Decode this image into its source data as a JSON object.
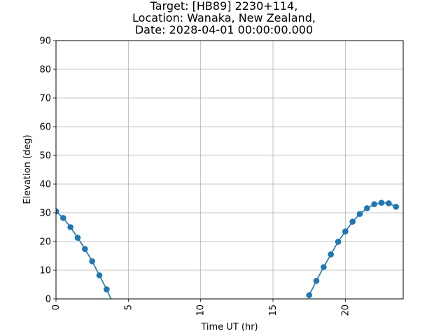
{
  "chart_data": {
    "type": "line",
    "title_lines": [
      "Target: [HB89] 2230+114,",
      "Location: Wanaka, New Zealand,",
      "Date: 2028-04-01 00:00:00.000"
    ],
    "xlabel": "Time UT (hr)",
    "ylabel": "Elevation (deg)",
    "xlim": [
      0,
      24
    ],
    "ylim": [
      0,
      90
    ],
    "xticks": [
      0,
      5,
      10,
      15,
      20
    ],
    "yticks": [
      0,
      10,
      20,
      30,
      40,
      50,
      60,
      70,
      80,
      90
    ],
    "grid": true,
    "series": [
      {
        "color": "#1f77b4",
        "segments": [
          {
            "x": [
              0,
              0.5,
              1.0,
              1.5,
              2.0,
              2.5,
              3.0,
              3.5,
              3.8
            ],
            "y": [
              30.5,
              28.2,
              25.0,
              21.3,
              17.4,
              13.1,
              8.2,
              3.3,
              0
            ],
            "markers": [
              true,
              true,
              true,
              true,
              true,
              true,
              true,
              true,
              false
            ]
          },
          {
            "x": [
              17.5,
              18.0,
              18.5,
              19.0,
              19.5,
              20.0,
              20.5,
              21.0,
              21.5,
              22.0,
              22.5,
              23.0,
              23.5
            ],
            "y": [
              1.3,
              6.3,
              11.1,
              15.5,
              19.9,
              23.5,
              26.9,
              29.6,
              31.6,
              33.0,
              33.5,
              33.3,
              32.1
            ],
            "markers": [
              true,
              true,
              true,
              true,
              true,
              true,
              true,
              true,
              true,
              true,
              true,
              true,
              true
            ]
          }
        ]
      }
    ]
  }
}
